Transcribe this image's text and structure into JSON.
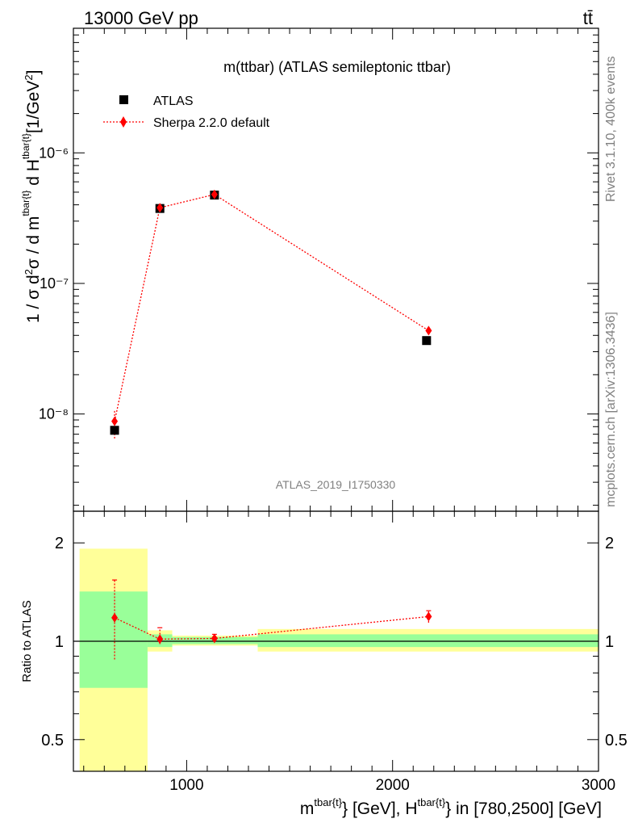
{
  "header": {
    "energy_label": "13000 GeV pp",
    "process_label": "tt̄",
    "plot_title": "m(ttbar) (ATLAS semileptonic ttbar)",
    "analysis_id": "ATLAS_2019_I1750330",
    "side_label_top": "Rivet 3.1.10,  400k events",
    "side_label_bottom": "mcplots.cern.ch [arXiv:1306.3436]"
  },
  "legend": {
    "data_label": "ATLAS",
    "mc_label": "Sherpa 2.2.0 default"
  },
  "axes": {
    "main_ylabel": "1 / σ d²σ / d m^{tbar{t}} d H_T^{tbar{t}} [1/GeV²]",
    "ratio_ylabel": "Ratio to ATLAS",
    "xlabel": "m^{tbar{t}} [GeV], H_T^{tbar{t}} in [780,2500] [GeV]",
    "main_yticks": [
      "10⁻⁸",
      "10⁻⁷",
      "10⁻⁶"
    ],
    "ratio_yticks": [
      "0.5",
      "1",
      "2"
    ],
    "xticks": [
      "1000",
      "2000",
      "3000"
    ]
  },
  "chart_data": [
    {
      "type": "scatter",
      "panel": "main",
      "yscale": "log",
      "xlim": [
        450,
        3000
      ],
      "ylim": [
        1.8e-09,
        9e-06
      ],
      "series": [
        {
          "name": "ATLAS",
          "color": "#000000",
          "marker": "square",
          "x": [
            650,
            870,
            1135,
            2165
          ],
          "y": [
            7.5e-09,
            3.75e-07,
            4.75e-07,
            3.65e-08
          ]
        },
        {
          "name": "Sherpa 2.2.0 default",
          "color": "#ff0000",
          "marker": "diamond",
          "line": "dotted",
          "x": [
            650,
            870,
            1135,
            2175
          ],
          "y": [
            8.8e-09,
            3.8e-07,
            4.8e-07,
            4.35e-08
          ],
          "yerr_low": [
            6.5e-09,
            3.65e-07,
            4.65e-07,
            4.15e-08
          ],
          "yerr_high": [
            1.08e-08,
            3.95e-07,
            4.95e-07,
            4.55e-08
          ]
        }
      ]
    },
    {
      "type": "scatter",
      "panel": "ratio",
      "yscale": "log",
      "xlim": [
        450,
        3000
      ],
      "ylim": [
        0.4,
        2.5
      ],
      "reference_line": 1,
      "bands": [
        {
          "xlo": 480,
          "xhi": 810,
          "inner": [
            0.72,
            1.42
          ],
          "outer": [
            0.33,
            1.92
          ]
        },
        {
          "xlo": 810,
          "xhi": 930,
          "inner": [
            0.96,
            1.05
          ],
          "outer": [
            0.93,
            1.08
          ]
        },
        {
          "xlo": 930,
          "xhi": 1345,
          "inner": [
            0.98,
            1.03
          ],
          "outer": [
            0.97,
            1.04
          ]
        },
        {
          "xlo": 1345,
          "xhi": 3000,
          "inner": [
            0.96,
            1.05
          ],
          "outer": [
            0.93,
            1.09
          ]
        }
      ],
      "series": [
        {
          "name": "Sherpa 2.2.0 default",
          "color": "#ff0000",
          "marker": "diamond",
          "x": [
            650,
            870,
            1135,
            2175
          ],
          "y": [
            1.18,
            1.015,
            1.02,
            1.19
          ],
          "yerr_low": [
            0.88,
            0.98,
            0.995,
            1.14
          ],
          "yerr_high": [
            1.54,
            1.1,
            1.05,
            1.24
          ]
        }
      ]
    }
  ]
}
